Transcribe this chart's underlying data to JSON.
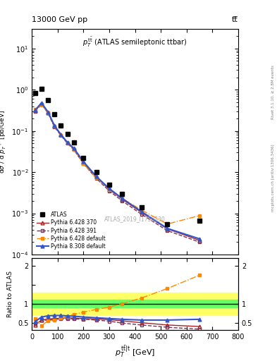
{
  "title_top": "13000 GeV pp",
  "title_right": "tt̅",
  "plot_title": "$p_T^{\\mathrm{t\\bar{t}}}$ (ATLAS semileptonic ttbar)",
  "watermark": "ATLAS_2019_I1750330",
  "right_label_top": "Rivet 3.1.10, ≥ 2.8M events",
  "right_label_bot": "mcplots.cern.ch [arXiv:1306.3436]",
  "xlabel": "$p_T^{\\mathrm{t\\bar{t}|t}}$ [GeV]",
  "ylabel": "dσ / d $p_T^{\\mathrm{t\\bar{t}|t}}$ [pb/GeV]",
  "ylabel_ratio": "Ratio to ATLAS",
  "xlim": [
    0,
    800
  ],
  "ylim_log": [
    0.0001,
    30
  ],
  "ylim_ratio": [
    0.3,
    2.2
  ],
  "atlas_x": [
    12.5,
    37.5,
    62.5,
    87.5,
    112.5,
    137.5,
    162.5,
    200,
    250,
    300,
    350,
    425,
    525,
    650
  ],
  "atlas_y": [
    0.82,
    1.05,
    0.55,
    0.25,
    0.135,
    0.083,
    0.053,
    0.022,
    0.01,
    0.005,
    0.003,
    0.0014,
    0.00055,
    0.00065
  ],
  "py6_370_x": [
    12.5,
    37.5,
    62.5,
    87.5,
    112.5,
    137.5,
    162.5,
    200,
    250,
    300,
    350,
    425,
    525,
    650
  ],
  "py6_370_y": [
    0.31,
    0.45,
    0.28,
    0.13,
    0.08,
    0.052,
    0.037,
    0.017,
    0.0075,
    0.0038,
    0.0022,
    0.00105,
    0.00042,
    0.00022
  ],
  "py6_391_x": [
    12.5,
    37.5,
    62.5,
    87.5,
    112.5,
    137.5,
    162.5,
    200,
    250,
    300,
    350,
    425,
    525,
    650
  ],
  "py6_391_y": [
    0.3,
    0.44,
    0.27,
    0.125,
    0.078,
    0.05,
    0.035,
    0.016,
    0.007,
    0.0035,
    0.002,
    0.00095,
    0.00038,
    0.0002
  ],
  "py6_def_x": [
    12.5,
    37.5,
    62.5,
    87.5,
    112.5,
    137.5,
    162.5,
    200,
    250,
    300,
    350,
    425,
    525,
    650
  ],
  "py6_def_y": [
    0.33,
    0.43,
    0.28,
    0.13,
    0.079,
    0.051,
    0.036,
    0.016,
    0.0072,
    0.0038,
    0.0023,
    0.0012,
    0.00055,
    0.00088
  ],
  "py8_def_x": [
    12.5,
    37.5,
    62.5,
    87.5,
    112.5,
    137.5,
    162.5,
    200,
    250,
    300,
    350,
    425,
    525,
    650
  ],
  "py8_def_y": [
    0.32,
    0.48,
    0.29,
    0.135,
    0.082,
    0.053,
    0.038,
    0.018,
    0.0078,
    0.004,
    0.0023,
    0.0011,
    0.00043,
    0.00024
  ],
  "ratio_x": [
    12.5,
    37.5,
    62.5,
    87.5,
    112.5,
    137.5,
    162.5,
    200,
    250,
    300,
    350,
    425,
    525,
    650
  ],
  "ratio_py6_370_y": [
    0.44,
    0.57,
    0.6,
    0.61,
    0.62,
    0.63,
    0.62,
    0.61,
    0.6,
    0.58,
    0.55,
    0.5,
    0.44,
    0.4
  ],
  "ratio_py6_391_y": [
    0.47,
    0.56,
    0.57,
    0.59,
    0.6,
    0.61,
    0.6,
    0.59,
    0.57,
    0.54,
    0.49,
    0.44,
    0.38,
    0.33
  ],
  "ratio_py6_def_y": [
    0.6,
    0.42,
    0.55,
    0.56,
    0.62,
    0.66,
    0.72,
    0.78,
    0.85,
    0.91,
    1.0,
    1.15,
    1.4,
    1.75
  ],
  "ratio_py8_def_y": [
    0.53,
    0.65,
    0.68,
    0.69,
    0.69,
    0.68,
    0.67,
    0.65,
    0.63,
    0.61,
    0.59,
    0.57,
    0.57,
    0.59
  ],
  "band_green_lo": 0.9,
  "band_green_hi": 1.1,
  "band_yellow_lo": 0.7,
  "band_yellow_hi": 1.3,
  "color_atlas": "#000000",
  "color_py6_370": "#aa2222",
  "color_py6_391": "#773355",
  "color_py6_def": "#ff8800",
  "color_py8_def": "#3355cc"
}
